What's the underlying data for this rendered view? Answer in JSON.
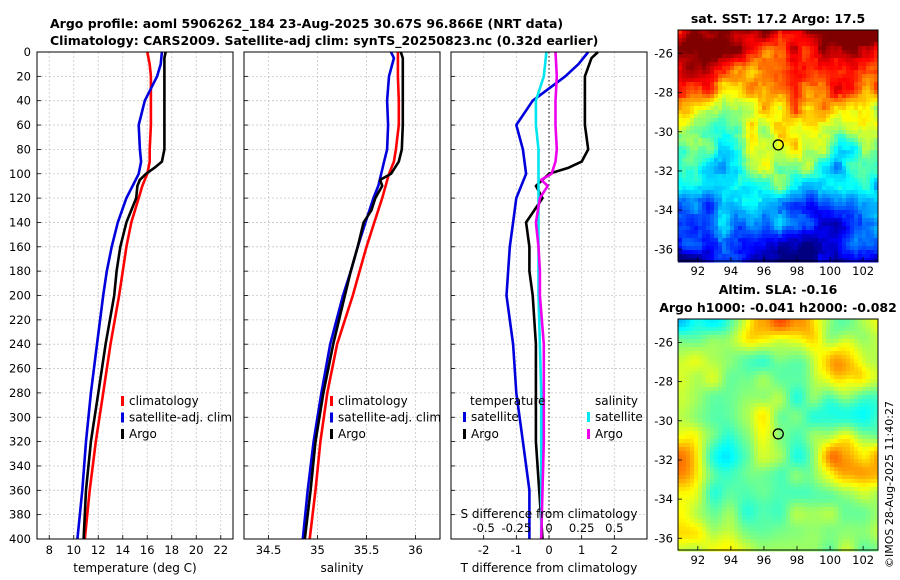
{
  "header": {
    "line1": "Argo profile: aoml 5906262_184 23-Aug-2025 30.67S 96.866E (NRT data)",
    "line2": "Climatology: CARS2009. Satellite-adj clim: synTS_20250823.nc (0.32d earlier)"
  },
  "colors": {
    "climatology": "#ff0000",
    "satellite": "#0000dd",
    "argo": "#000000",
    "salinity_satellite": "#00e5ee",
    "salinity_argo": "#ee00ee",
    "grid": "#c8c8c8"
  },
  "depth_axis": {
    "ticks": [
      0,
      20,
      40,
      60,
      80,
      100,
      120,
      140,
      160,
      180,
      200,
      220,
      240,
      260,
      280,
      300,
      320,
      340,
      360,
      380,
      400
    ],
    "range": [
      0,
      400
    ]
  },
  "chart_data": [
    {
      "id": "temperature",
      "type": "line",
      "xlabel": "temperature (deg C)",
      "xlim": [
        7,
        23
      ],
      "xticks": [
        8,
        10,
        12,
        14,
        16,
        18,
        20,
        22
      ],
      "ylim": [
        400,
        0
      ],
      "legend": [
        "climatology",
        "satellite-adj. clim",
        "Argo"
      ],
      "series": [
        {
          "name": "climatology",
          "color": "#ff0000",
          "depth": [
            0,
            10,
            20,
            40,
            60,
            80,
            90,
            100,
            110,
            120,
            140,
            160,
            180,
            200,
            240,
            280,
            320,
            360,
            400
          ],
          "values": [
            16.0,
            16.2,
            16.3,
            16.3,
            16.3,
            16.2,
            16.2,
            16.0,
            15.6,
            15.3,
            14.7,
            14.3,
            14.0,
            13.7,
            13.0,
            12.4,
            11.8,
            11.3,
            10.9
          ]
        },
        {
          "name": "satellite-adj. clim",
          "color": "#0000dd",
          "depth": [
            0,
            10,
            20,
            40,
            60,
            80,
            90,
            100,
            110,
            120,
            140,
            160,
            180,
            200,
            240,
            280,
            320,
            360,
            400
          ],
          "values": [
            17.2,
            17.1,
            16.8,
            15.8,
            15.3,
            15.4,
            15.5,
            15.3,
            14.8,
            14.3,
            13.6,
            13.1,
            12.7,
            12.4,
            11.9,
            11.4,
            11.0,
            10.7,
            10.3
          ]
        },
        {
          "name": "Argo",
          "color": "#000000",
          "depth": [
            0,
            5,
            20,
            40,
            60,
            80,
            90,
            95,
            100,
            105,
            110,
            120,
            140,
            160,
            180,
            200,
            240,
            280,
            320,
            360,
            400
          ],
          "values": [
            17.5,
            17.4,
            17.4,
            17.4,
            17.4,
            17.4,
            17.2,
            16.6,
            15.9,
            15.4,
            15.2,
            15.1,
            14.3,
            13.8,
            13.5,
            13.3,
            12.6,
            12.0,
            11.4,
            11.0,
            10.8
          ]
        }
      ]
    },
    {
      "id": "salinity",
      "type": "line",
      "xlabel": "salinity",
      "xlim": [
        34.25,
        36.25
      ],
      "xticks": [
        "34.5",
        "35",
        "35.5",
        "36"
      ],
      "xtick_values": [
        34.5,
        35.0,
        35.5,
        36.0
      ],
      "ylim": [
        400,
        0
      ],
      "legend": [
        "climatology",
        "satellite-adj. clim",
        "Argo"
      ],
      "series": [
        {
          "name": "climatology",
          "color": "#ff0000",
          "depth": [
            0,
            20,
            40,
            60,
            80,
            90,
            100,
            120,
            140,
            160,
            180,
            200,
            240,
            280,
            320,
            360,
            400
          ],
          "values": [
            35.82,
            35.82,
            35.83,
            35.83,
            35.8,
            35.78,
            35.73,
            35.66,
            35.58,
            35.5,
            35.43,
            35.36,
            35.2,
            35.1,
            35.03,
            34.98,
            34.92
          ]
        },
        {
          "name": "satellite-adj. clim",
          "color": "#0000dd",
          "depth": [
            0,
            5,
            20,
            40,
            60,
            80,
            90,
            100,
            110,
            120,
            140,
            160,
            180,
            200,
            240,
            280,
            320,
            360,
            400
          ],
          "values": [
            35.75,
            35.78,
            35.73,
            35.71,
            35.72,
            35.71,
            35.68,
            35.65,
            35.62,
            35.57,
            35.49,
            35.41,
            35.34,
            35.26,
            35.13,
            35.04,
            34.96,
            34.9,
            34.85
          ]
        },
        {
          "name": "Argo",
          "color": "#000000",
          "depth": [
            0,
            5,
            20,
            40,
            60,
            80,
            90,
            100,
            105,
            110,
            120,
            130,
            140,
            160,
            180,
            200,
            240,
            280,
            320,
            360,
            400
          ],
          "values": [
            35.85,
            35.87,
            35.87,
            35.87,
            35.87,
            35.86,
            35.83,
            35.75,
            35.64,
            35.66,
            35.59,
            35.55,
            35.47,
            35.41,
            35.34,
            35.28,
            35.16,
            35.06,
            34.98,
            34.93,
            34.87
          ]
        }
      ]
    },
    {
      "id": "differences",
      "type": "line",
      "xlabel": "T difference from climatology",
      "xlim": [
        -3,
        3
      ],
      "xticks": [
        "-2",
        "-1",
        "0",
        "1",
        "2"
      ],
      "xtick_values": [
        -2,
        -1,
        0,
        1,
        2
      ],
      "top_label": "S difference from climatology",
      "top_xticks": [
        "-0.5",
        "-0.25",
        "0",
        "0.25",
        "0.5"
      ],
      "top_xtick_values": [
        -0.5,
        -0.25,
        0,
        0.25,
        0.5
      ],
      "top_xlim": [
        -0.75,
        0.75
      ],
      "ylim": [
        400,
        0
      ],
      "legend_temperature": [
        "temperature",
        "satellite",
        "Argo"
      ],
      "legend_salinity": [
        "salinity",
        "satellite",
        "Argo"
      ],
      "series": [
        {
          "name": "T satellite",
          "color": "#0000dd",
          "axis": "T",
          "depth": [
            0,
            10,
            20,
            40,
            60,
            80,
            100,
            120,
            140,
            160,
            200,
            240,
            280,
            320,
            360,
            400
          ],
          "values": [
            1.2,
            0.9,
            0.5,
            -0.5,
            -1.0,
            -0.8,
            -0.7,
            -1.0,
            -1.1,
            -1.2,
            -1.3,
            -1.1,
            -1.0,
            -0.8,
            -0.6,
            -0.6
          ]
        },
        {
          "name": "T Argo",
          "color": "#000000",
          "axis": "T",
          "depth": [
            0,
            5,
            20,
            40,
            60,
            80,
            90,
            95,
            100,
            110,
            120,
            140,
            160,
            180,
            200,
            240,
            280,
            320,
            360,
            400
          ],
          "values": [
            1.5,
            1.3,
            1.1,
            1.1,
            1.1,
            1.2,
            1.0,
            0.6,
            0.0,
            -0.4,
            -0.2,
            -0.7,
            -0.6,
            -0.6,
            -0.5,
            -0.4,
            -0.4,
            -0.4,
            -0.3,
            -0.2
          ]
        },
        {
          "name": "S satellite",
          "color": "#00e5ee",
          "axis": "S",
          "depth": [
            0,
            20,
            40,
            60,
            80,
            100,
            120,
            140,
            160,
            180,
            200,
            240,
            280,
            320,
            360,
            400
          ],
          "values": [
            -0.02,
            -0.04,
            -0.1,
            -0.1,
            -0.08,
            -0.08,
            -0.08,
            -0.08,
            -0.08,
            -0.08,
            -0.08,
            -0.07,
            -0.06,
            -0.06,
            -0.06,
            -0.06
          ]
        },
        {
          "name": "S Argo",
          "color": "#ee00ee",
          "axis": "S",
          "depth": [
            0,
            20,
            40,
            60,
            80,
            90,
            100,
            105,
            110,
            120,
            140,
            160,
            180,
            200,
            240,
            280,
            320,
            360,
            400
          ],
          "values": [
            0.05,
            0.06,
            0.05,
            0.05,
            0.06,
            0.05,
            0.02,
            -0.06,
            -0.01,
            -0.07,
            -0.1,
            -0.08,
            -0.07,
            -0.07,
            -0.04,
            -0.04,
            -0.04,
            -0.05,
            -0.06
          ]
        }
      ]
    },
    {
      "id": "sst_map",
      "type": "heatmap",
      "title": "sat. SST: 17.2 Argo: 17.5",
      "xticks": [
        "92",
        "94",
        "96",
        "98",
        "100",
        "102"
      ],
      "xtick_values": [
        92,
        94,
        96,
        98,
        100,
        102
      ],
      "yticks": [
        "-26",
        "-28",
        "-30",
        "-32",
        "-34",
        "-36"
      ],
      "ytick_values": [
        -26,
        -28,
        -30,
        -32,
        -34,
        -36
      ],
      "xlim": [
        90.8,
        102.9
      ],
      "ylim": [
        -36.6,
        -24.8
      ],
      "marker": {
        "lon": 96.866,
        "lat": -30.67
      }
    },
    {
      "id": "sla_map",
      "type": "heatmap",
      "title_line1": "Altim. SLA: -0.16",
      "title_line2": "Argo h1000: -0.041 h2000: -0.082",
      "xticks": [
        "92",
        "94",
        "96",
        "98",
        "100",
        "102"
      ],
      "xtick_values": [
        92,
        94,
        96,
        98,
        100,
        102
      ],
      "yticks": [
        "-26",
        "-28",
        "-30",
        "-32",
        "-34",
        "-36"
      ],
      "ytick_values": [
        -26,
        -28,
        -30,
        -32,
        -34,
        -36
      ],
      "xlim": [
        90.8,
        102.9
      ],
      "ylim": [
        -36.6,
        -24.8
      ],
      "marker": {
        "lon": 96.866,
        "lat": -30.67
      }
    }
  ],
  "copyright": "©IMOS 28-Aug-2025 11:40:27"
}
